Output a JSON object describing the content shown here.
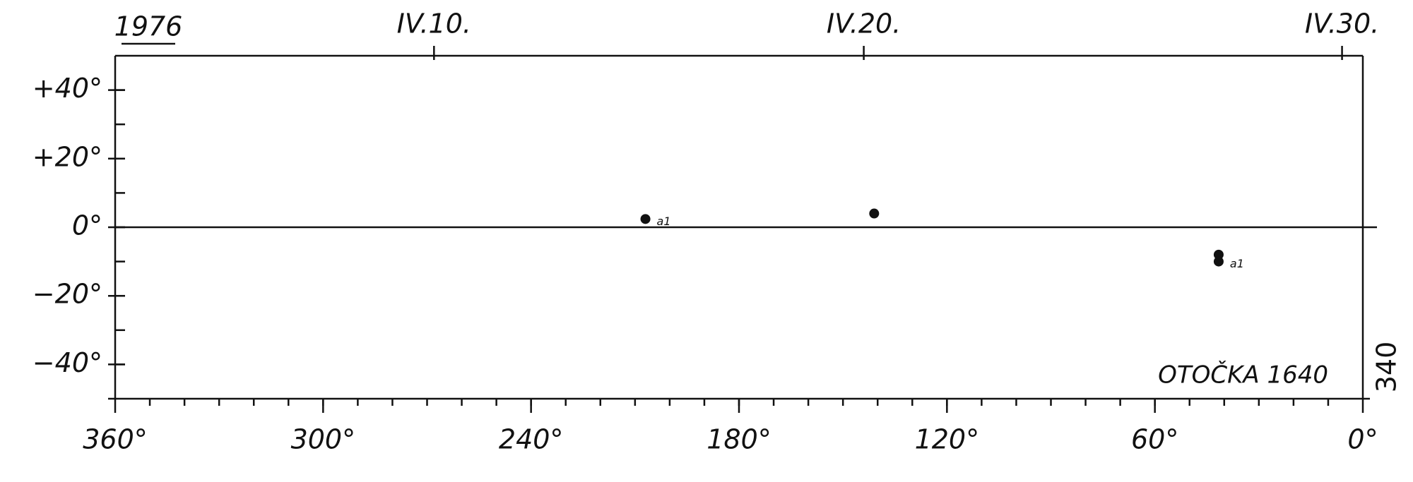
{
  "chart_data": {
    "type": "scatter",
    "year": "1976",
    "rotation_label": "OTOČKA 1640",
    "side_label": "340",
    "xlim": [
      360,
      0
    ],
    "ylim": [
      -50,
      50
    ],
    "xticks": [
      {
        "value": 360,
        "label": "360°"
      },
      {
        "value": 300,
        "label": "300°"
      },
      {
        "value": 240,
        "label": "240°"
      },
      {
        "value": 180,
        "label": "180°"
      },
      {
        "value": 120,
        "label": "120°"
      },
      {
        "value": 60,
        "label": "60°"
      },
      {
        "value": 0,
        "label": "0°"
      }
    ],
    "yticks": [
      {
        "value": 40,
        "label": "+40°"
      },
      {
        "value": 20,
        "label": "+20°"
      },
      {
        "value": 0,
        "label": "0°"
      },
      {
        "value": -20,
        "label": "−20°"
      },
      {
        "value": -40,
        "label": "−40°"
      }
    ],
    "date_ticks": [
      {
        "value": 268,
        "label": "IV.10."
      },
      {
        "value": 144,
        "label": "IV.20."
      },
      {
        "value": 6,
        "label": "IV.30."
      }
    ],
    "zero_line": true,
    "series": [
      {
        "color": "#111111",
        "x": [
          207,
          141,
          41.6,
          41.6
        ],
        "values": [
          2.4,
          4,
          -8,
          -10
        ],
        "labels": [
          "a1",
          null,
          null,
          "a1"
        ]
      }
    ]
  }
}
